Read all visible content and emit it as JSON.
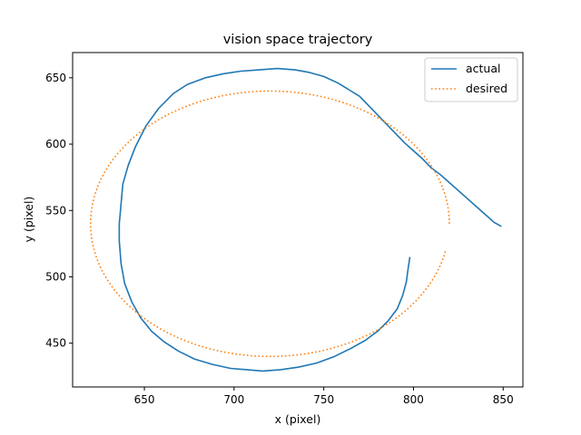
{
  "chart_data": {
    "type": "line",
    "title": "vision space trajectory",
    "xlabel": "x (pixel)",
    "ylabel": "y (pixel)",
    "xlim": [
      610,
      861
    ],
    "ylim": [
      417,
      669
    ],
    "xticks": [
      650,
      700,
      750,
      800,
      850
    ],
    "yticks": [
      450,
      500,
      550,
      600,
      650
    ],
    "grid": false,
    "legend": "top-right",
    "series": [
      {
        "name": "actual",
        "style": "solid",
        "color": "#1f77b4",
        "points": [
          [
            849,
            538
          ],
          [
            845,
            541
          ],
          [
            840,
            547
          ],
          [
            835,
            553
          ],
          [
            830,
            559
          ],
          [
            825,
            565
          ],
          [
            820,
            571
          ],
          [
            815,
            577
          ],
          [
            810,
            582
          ],
          [
            805,
            589
          ],
          [
            800,
            595
          ],
          [
            795,
            601
          ],
          [
            790,
            608
          ],
          [
            785,
            615
          ],
          [
            780,
            622
          ],
          [
            775,
            629
          ],
          [
            770,
            636
          ],
          [
            764,
            641
          ],
          [
            758,
            646
          ],
          [
            750,
            651
          ],
          [
            742,
            654
          ],
          [
            734,
            656
          ],
          [
            724,
            657
          ],
          [
            714,
            656
          ],
          [
            704,
            655
          ],
          [
            694,
            653
          ],
          [
            684,
            650
          ],
          [
            674,
            645
          ],
          [
            666,
            638
          ],
          [
            658,
            627
          ],
          [
            651,
            614
          ],
          [
            645,
            598
          ],
          [
            641,
            584
          ],
          [
            638,
            570
          ],
          [
            637,
            555
          ],
          [
            636,
            540
          ],
          [
            636,
            527
          ],
          [
            637,
            510
          ],
          [
            639,
            495
          ],
          [
            643,
            481
          ],
          [
            648,
            469
          ],
          [
            654,
            459
          ],
          [
            661,
            451
          ],
          [
            669,
            444
          ],
          [
            678,
            438
          ],
          [
            688,
            434
          ],
          [
            698,
            431
          ],
          [
            707,
            430
          ],
          [
            716,
            429
          ],
          [
            726,
            430
          ],
          [
            736,
            432
          ],
          [
            746,
            435
          ],
          [
            756,
            440
          ],
          [
            765,
            446
          ],
          [
            773,
            452
          ],
          [
            780,
            459
          ],
          [
            786,
            467
          ],
          [
            791,
            476
          ],
          [
            794,
            486
          ],
          [
            796,
            496
          ],
          [
            797,
            506
          ],
          [
            798,
            515
          ]
        ]
      },
      {
        "name": "desired",
        "style": "dotted",
        "color": "#ff7f0e",
        "ellipse": {
          "center_x": 720,
          "center_y": 540,
          "radius_x": 100,
          "radius_y": 100,
          "start_angle_deg": 0,
          "end_angle_deg": 348
        }
      }
    ]
  }
}
